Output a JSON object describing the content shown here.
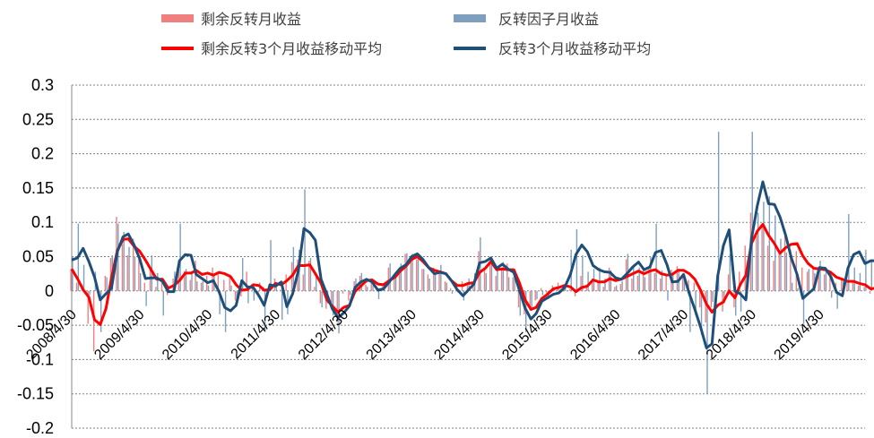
{
  "chart_data": {
    "type": "bar",
    "title": "",
    "xlabel": "",
    "ylabel": "",
    "ylim": [
      -0.2,
      0.3
    ],
    "yticks": [
      "0.3",
      "0.25",
      "0.2",
      "0.15",
      "0.1",
      "0.05",
      "0",
      "-0.05",
      "-0.1",
      "-0.15",
      "-0.2"
    ],
    "ytick_values": [
      0.3,
      0.25,
      0.2,
      0.15,
      0.1,
      0.05,
      0,
      -0.05,
      -0.1,
      -0.15,
      -0.2
    ],
    "x_tick_labels": [
      "2008/4/30",
      "2009/4/30",
      "2010/4/30",
      "2011/4/30",
      "2012/4/30",
      "2013/4/30",
      "2014/4/30",
      "2015/4/30",
      "2016/4/30",
      "2017/4/30",
      "2018/4/30",
      "2019/4/30"
    ],
    "x_start": "2008/4/30",
    "x_end": "2019/12/31",
    "grid": true,
    "legend_position": "top",
    "colors": {
      "residual_bar": "#f08080",
      "factor_bar": "#7f9fbf",
      "residual_ma": "#ff0000",
      "factor_ma": "#1f4e79"
    },
    "series": [
      {
        "name": "剩余反转月收益",
        "kind": "bar",
        "values": [
          0.032,
          0.012,
          0.009,
          -0.048,
          -0.088,
          -0.012,
          0.022,
          0.048,
          0.108,
          0.068,
          0.052,
          0.076,
          0.046,
          0.012,
          0.034,
          0.006,
          0.012,
          -0.006,
          0.018,
          0.032,
          0.029,
          0.016,
          0.044,
          0.012,
          0.022,
          0.034,
          0.024,
          0.016,
          0.024,
          -0.014,
          -0.008,
          0.028,
          0.006,
          -0.009,
          0.006,
          0.008,
          0.018,
          0.002,
          0.024,
          0.042,
          0.046,
          0.024,
          0.044,
          0.006,
          -0.018,
          -0.026,
          -0.022,
          -0.046,
          -0.004,
          -0.014,
          0.014,
          0.022,
          0.009,
          0.016,
          0.004,
          0.008,
          0.034,
          0.019,
          0.034,
          0.054,
          0.05,
          0.046,
          0.032,
          0.024,
          0.034,
          0.026,
          0.014,
          0.004,
          0.006,
          0.014,
          0.012,
          0.01,
          0.058,
          0.03,
          0.042,
          0.022,
          0.032,
          0.04,
          0.02,
          -0.024,
          -0.034,
          -0.024,
          -0.014,
          0.004,
          -0.004,
          0.008,
          0.012,
          0.004,
          0.002,
          -0.008,
          0.022,
          0.008,
          0.018,
          0.014,
          0.006,
          0.034,
          0.006,
          0.01,
          0.046,
          0.018,
          0.022,
          0.034,
          0.032,
          0.026,
          0.018,
          0.024,
          0.031,
          0.036,
          0.024,
          0.016,
          0.012,
          -0.024,
          -0.046,
          -0.024,
          0.006,
          -0.03,
          0.024,
          -0.024,
          0.028,
          0.066,
          0.114,
          0.08,
          0.096,
          0.066,
          0.044,
          0.054,
          0.09,
          0.06,
          0.058,
          0.034,
          0.028,
          0.036,
          0.032,
          0.024,
          0.024,
          0.012,
          0.016,
          0.014,
          0.012,
          0.008,
          0.006,
          -0.004,
          0.01,
          -0.004,
          0.004,
          -0.014,
          0.01,
          0.01,
          -0.006,
          -0.01,
          0.02,
          0.032,
          0.026,
          0.012,
          0.012,
          -0.006,
          0.018,
          0.024,
          0.026,
          0.016,
          0.012,
          0.016,
          0.026,
          0.024,
          0.034,
          0.026,
          0.01,
          -0.014,
          -0.006,
          0.01,
          0.008,
          0.014,
          0.018,
          0.012,
          0.014,
          0.008,
          0.03,
          0.02,
          0.02,
          0.01,
          0.022,
          0.016,
          0.006,
          0.026,
          0.02,
          0.01,
          0.024,
          0.04
        ]
      },
      {
        "name": "反转因子月收益",
        "kind": "bar",
        "values": [
          0.05,
          0.098,
          0.038,
          -0.006,
          0.028,
          -0.06,
          0.02,
          0.052,
          0.098,
          0.086,
          0.064,
          0.05,
          0.026,
          -0.022,
          0.052,
          0.026,
          -0.036,
          0.006,
          0.028,
          0.098,
          0.032,
          0.026,
          0.014,
          0.014,
          0.008,
          0.022,
          -0.034,
          -0.06,
          0.008,
          -0.012,
          0.048,
          -0.018,
          -0.014,
          0.012,
          -0.06,
          0.074,
          0.006,
          -0.042,
          -0.034,
          0.064,
          0.06,
          0.148,
          0.048,
          0.026,
          -0.024,
          -0.018,
          -0.036,
          -0.062,
          0.002,
          -0.006,
          0.018,
          0.026,
          0.006,
          0.008,
          -0.012,
          0.012,
          0.04,
          0.02,
          0.04,
          0.055,
          0.054,
          0.052,
          0.032,
          0.018,
          0.026,
          0.038,
          0.012,
          -0.004,
          -0.002,
          -0.014,
          0.018,
          0.026,
          0.078,
          0.026,
          0.04,
          0.034,
          0.042,
          0.02,
          0.02,
          -0.036,
          -0.06,
          -0.026,
          -0.012,
          -0.006,
          -0.012,
          0.002,
          0.002,
          0.01,
          0.06,
          0.09,
          0.052,
          0.028,
          0.032,
          0.034,
          0.018,
          0.03,
          0.008,
          0.014,
          0.054,
          0.038,
          0.034,
          0.02,
          0.05,
          0.098,
          0.03,
          -0.014,
          0.024,
          0.032,
          0.016,
          -0.06,
          -0.036,
          -0.064,
          -0.15,
          -0.016,
          0.232,
          -0.018,
          0.054,
          -0.036,
          -0.03,
          0.026,
          0.232,
          0.114,
          0.13,
          0.138,
          0.11,
          0.076,
          0.056,
          0.012,
          0.004,
          -0.048,
          0.032,
          0.026,
          0.044,
          0.03,
          -0.01,
          -0.026,
          0.014,
          0.112,
          0.034,
          0.026,
          0.06,
          0.046,
          0.026,
          0.032,
          0.048,
          0.024,
          0.028,
          0.012,
          0.004,
          -0.028,
          0.014,
          0.026,
          -0.068,
          -0.134,
          -0.008,
          0.09,
          0.038,
          -0.004,
          0.01,
          0.014,
          0.058,
          0.048,
          0.032,
          0.058,
          0.046,
          0.048,
          0.032,
          -0.008,
          0.012,
          0.032,
          0.058,
          0.022,
          0.018,
          0.01,
          -0.044,
          0.032,
          0.05,
          0.026,
          0.012,
          0.028,
          0.048,
          0.038,
          0.132,
          0.026,
          -0.044,
          0.048,
          0.078,
          -0.004
        ]
      },
      {
        "name": "剩余反转3个月收益移动平均",
        "kind": "line",
        "values": [
          0.032,
          0.018,
          0.002,
          -0.009,
          -0.042,
          -0.049,
          -0.026,
          0.019,
          0.059,
          0.075,
          0.076,
          0.065,
          0.058,
          0.045,
          0.031,
          0.017,
          0.017,
          0.004,
          0.008,
          0.015,
          0.026,
          0.026,
          0.03,
          0.024,
          0.026,
          0.023,
          0.027,
          0.025,
          0.021,
          0.009,
          0.001,
          0.002,
          0.009,
          0.008,
          0.001,
          0.002,
          0.011,
          0.009,
          0.015,
          0.023,
          0.037,
          0.037,
          0.038,
          0.025,
          0.011,
          -0.013,
          -0.022,
          -0.031,
          -0.024,
          -0.021,
          -0.001,
          0.007,
          0.015,
          0.016,
          0.01,
          0.009,
          0.015,
          0.02,
          0.029,
          0.036,
          0.046,
          0.05,
          0.043,
          0.034,
          0.03,
          0.028,
          0.025,
          0.015,
          0.008,
          0.008,
          0.011,
          0.012,
          0.027,
          0.033,
          0.043,
          0.031,
          0.032,
          0.031,
          0.031,
          0.012,
          -0.013,
          -0.027,
          -0.024,
          -0.011,
          -0.005,
          0.003,
          0.005,
          0.008,
          0.006,
          -0.001,
          0.005,
          0.007,
          0.016,
          0.013,
          0.013,
          0.018,
          0.015,
          0.017,
          0.021,
          0.025,
          0.029,
          0.025,
          0.029,
          0.031,
          0.025,
          0.023,
          0.024,
          0.03,
          0.03,
          0.025,
          0.017,
          0.001,
          -0.019,
          -0.031,
          -0.021,
          -0.016,
          0.0,
          -0.01,
          0.009,
          0.023,
          0.069,
          0.087,
          0.097,
          0.081,
          0.069,
          0.055,
          0.063,
          0.068,
          0.069,
          0.051,
          0.04,
          0.033,
          0.032,
          0.031,
          0.027,
          0.02,
          0.017,
          0.014,
          0.014,
          0.011,
          0.009,
          0.003,
          0.004,
          0.001,
          0.003,
          -0.005,
          0.0,
          0.002,
          0.005,
          -0.002,
          0.001,
          0.014,
          0.026,
          0.023,
          0.017,
          0.006,
          0.008,
          0.012,
          0.023,
          0.022,
          0.018,
          0.015,
          0.018,
          0.022,
          0.028,
          0.028,
          0.023,
          0.007,
          -0.003,
          -0.003,
          0.004,
          0.011,
          0.013,
          0.015,
          0.015,
          0.011,
          0.017,
          0.019,
          0.023,
          0.017,
          0.017,
          0.016,
          0.015,
          0.016,
          0.017,
          0.019,
          0.018,
          0.025
        ]
      },
      {
        "name": "反转3个月收益移动平均",
        "kind": "line",
        "values": [
          0.045,
          0.048,
          0.062,
          0.043,
          0.02,
          -0.013,
          -0.004,
          0.004,
          0.057,
          0.079,
          0.083,
          0.067,
          0.047,
          0.018,
          0.019,
          0.019,
          0.014,
          -0.001,
          -0.001,
          0.044,
          0.053,
          0.052,
          0.024,
          0.018,
          0.012,
          0.015,
          -0.001,
          -0.024,
          -0.029,
          -0.021,
          0.015,
          0.006,
          0.005,
          -0.007,
          -0.021,
          0.009,
          0.007,
          0.013,
          -0.023,
          -0.004,
          0.03,
          0.091,
          0.085,
          0.074,
          0.017,
          -0.005,
          -0.026,
          -0.039,
          -0.032,
          -0.022,
          0.005,
          0.013,
          0.017,
          0.013,
          0.001,
          0.003,
          0.013,
          0.024,
          0.033,
          0.038,
          0.05,
          0.054,
          0.046,
          0.034,
          0.025,
          0.027,
          0.025,
          0.015,
          0.002,
          -0.007,
          0.001,
          0.01,
          0.041,
          0.043,
          0.048,
          0.033,
          0.039,
          0.032,
          0.027,
          0.001,
          -0.025,
          -0.041,
          -0.033,
          -0.015,
          -0.01,
          -0.005,
          -0.003,
          0.005,
          0.024,
          0.053,
          0.067,
          0.057,
          0.037,
          0.031,
          0.028,
          0.027,
          0.019,
          0.017,
          0.025,
          0.035,
          0.042,
          0.031,
          0.035,
          0.056,
          0.059,
          0.038,
          0.013,
          0.014,
          0.024,
          -0.004,
          -0.027,
          -0.053,
          -0.083,
          -0.077,
          0.022,
          0.066,
          0.089,
          0.0,
          -0.004,
          -0.013,
          0.076,
          0.124,
          0.159,
          0.127,
          0.126,
          0.108,
          0.081,
          0.048,
          0.024,
          -0.011,
          -0.004,
          0.003,
          0.034,
          0.033,
          0.021,
          -0.002,
          -0.007,
          0.033,
          0.053,
          0.057,
          0.04,
          0.044,
          0.044,
          0.035,
          0.035,
          0.035,
          0.033,
          0.021,
          0.015,
          -0.004,
          -0.003,
          0.004,
          -0.009,
          -0.059,
          -0.072,
          -0.017,
          0.04,
          0.041,
          0.015,
          0.007,
          0.027,
          0.04,
          0.046,
          0.046,
          0.045,
          0.051,
          0.042,
          0.024,
          0.012,
          0.012,
          0.034,
          0.037,
          0.033,
          0.017,
          -0.005,
          0.0,
          0.013,
          0.036,
          0.029,
          0.022,
          0.029,
          0.038,
          0.073,
          0.065,
          0.038,
          0.01,
          0.027,
          0.041
        ]
      }
    ]
  }
}
